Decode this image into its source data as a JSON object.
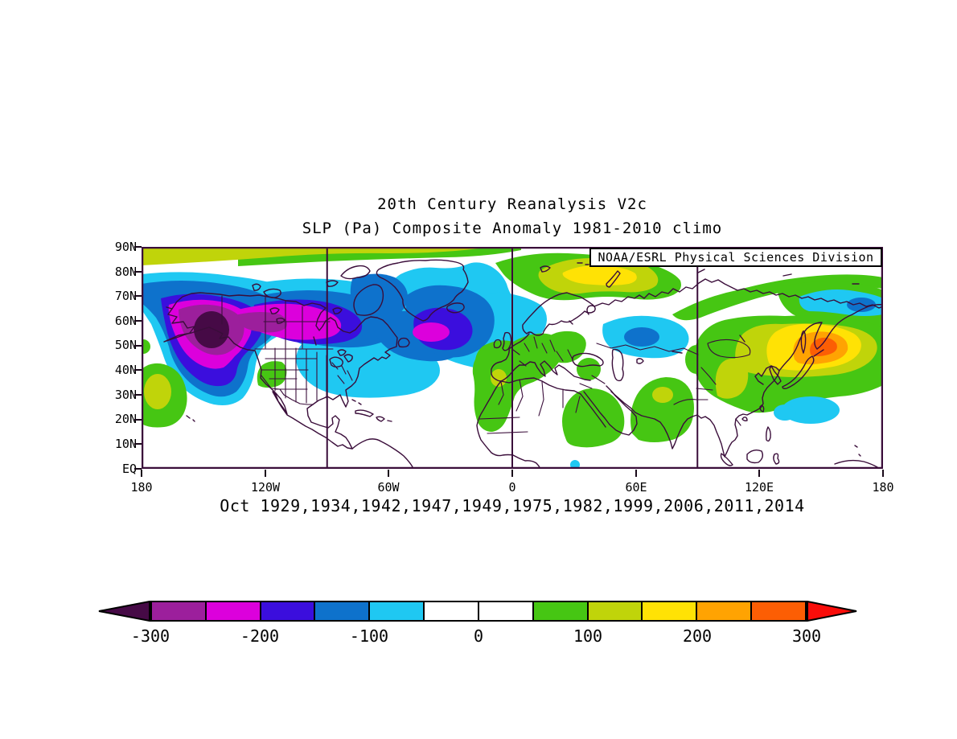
{
  "header": {
    "title_line1": "20th Century Reanalysis V2c",
    "title_line2": "SLP (Pa) Composite Anomaly 1981-2010 climo"
  },
  "map": {
    "credit": "NOAA/ESRL Physical Sciences Division",
    "lat_labels": [
      "90N",
      "80N",
      "70N",
      "60N",
      "50N",
      "40N",
      "30N",
      "20N",
      "10N",
      "EQ"
    ],
    "lon_labels": [
      "180",
      "120W",
      "60W",
      "0",
      "60E",
      "120E",
      "180"
    ]
  },
  "caption": "Oct 1929,1934,1942,1947,1949,1975,1982,1999,2006,2011,2014",
  "colorbar": {
    "tick_labels": [
      "-300",
      "-200",
      "-100",
      "0",
      "100",
      "200",
      "300"
    ],
    "segment_colors": [
      "#9C1F9C",
      "#DC00DC",
      "#3B0EDD",
      "#0E72CC",
      "#1FC8F2",
      "#FFFFFF",
      "#FFFFFF",
      "#46C613",
      "#C0D40A",
      "#FFE205",
      "#FFA302",
      "#FC5E04"
    ],
    "below_min_color": "#460A46",
    "above_max_color": "#F90D0A"
  },
  "chart_data": {
    "type": "heatmap",
    "title": "20th Century Reanalysis V2c",
    "subtitle": "SLP (Pa) Composite Anomaly 1981-2010 climo",
    "variable": "Sea level pressure composite anomaly",
    "units": "Pa",
    "climatology": "1981-2010",
    "composite_month": "Oct",
    "composite_years": [
      1929,
      1934,
      1942,
      1947,
      1949,
      1975,
      1982,
      1999,
      2006,
      2011,
      2014
    ],
    "credit": "NOAA/ESRL Physical Sciences Division",
    "projection": "cylindrical equidistant",
    "lon_range_deg": [
      -180,
      180
    ],
    "lat_range_deg": [
      0,
      90
    ],
    "xlabel_ticks": [
      "180",
      "120W",
      "60W",
      "0",
      "60E",
      "120E",
      "180"
    ],
    "ylabel_ticks": [
      "EQ",
      "10N",
      "20N",
      "30N",
      "40N",
      "50N",
      "60N",
      "70N",
      "80N",
      "90N"
    ],
    "grid_meridians_deg": [
      -90,
      0,
      90
    ],
    "colorbar_levels_pa": [
      -300,
      -250,
      -200,
      -150,
      -100,
      -50,
      0,
      50,
      100,
      150,
      200,
      250,
      300
    ],
    "colorbar_colors": [
      "#9C1F9C",
      "#DC00DC",
      "#3B0EDD",
      "#0E72CC",
      "#1FC8F2",
      "#FFFFFF",
      "#FFFFFF",
      "#46C613",
      "#C0D40A",
      "#FFE205",
      "#FFA302",
      "#FC5E04"
    ],
    "below_min_color": "#460A46",
    "above_max_color": "#F90D0A",
    "features": [
      {
        "region": "Gulf of Alaska / Yukon",
        "lon_deg": -146,
        "lat_deg": 56,
        "value_pa": -340,
        "note": "strong negative core (below -300)"
      },
      {
        "region": "Canada 55-65N band",
        "lon_deg": -110,
        "lat_deg": 60,
        "value_pa": -230
      },
      {
        "region": "South of Greenland / North Atlantic",
        "lon_deg": -39,
        "lat_deg": 55,
        "value_pa": -220
      },
      {
        "region": "Eastern United States / W Atlantic",
        "lon_deg": -75,
        "lat_deg": 40,
        "value_pa": -80
      },
      {
        "region": "NE Pacific (west of California)",
        "lon_deg": -172,
        "lat_deg": 32,
        "value_pa": 140
      },
      {
        "region": "SW United States (Great Basin)",
        "lon_deg": -113,
        "lat_deg": 38,
        "value_pa": 70
      },
      {
        "region": "Norwegian Sea / Scandinavia",
        "lon_deg": 5,
        "lat_deg": 63,
        "value_pa": -90
      },
      {
        "region": "Western Europe and Iberia",
        "lon_deg": 0,
        "lat_deg": 45,
        "value_pa": 80
      },
      {
        "region": "Gibraltar / Morocco spot",
        "lon_deg": -6,
        "lat_deg": 37,
        "value_pa": 120
      },
      {
        "region": "Kara Sea / Arctic Russia",
        "lon_deg": 45,
        "lat_deg": 80,
        "value_pa": 220,
        "note": "yellow core inside green band"
      },
      {
        "region": "Central Russia / Urals",
        "lon_deg": 63,
        "lat_deg": 54,
        "value_pa": -140
      },
      {
        "region": "Arabian Peninsula / Red Sea",
        "lon_deg": 42,
        "lat_deg": 20,
        "value_pa": 70
      },
      {
        "region": "Iran / Afghanistan",
        "lon_deg": 72,
        "lat_deg": 31,
        "value_pa": 120
      },
      {
        "region": "NE Asia / Sea of Okhotsk",
        "lon_deg": 150,
        "lat_deg": 51,
        "value_pa": 290,
        "note": "strong positive core (orange)"
      },
      {
        "region": "Inland China arm",
        "lon_deg": 105,
        "lat_deg": 35,
        "value_pa": 120
      },
      {
        "region": "East Siberian / Chukchi Sea",
        "lon_deg": 168,
        "lat_deg": 67,
        "value_pa": -140
      },
      {
        "region": "Subtropical NW Pacific",
        "lon_deg": 148,
        "lat_deg": 24,
        "value_pa": -80
      },
      {
        "region": "Polar cap rim 85-90N",
        "lon_deg": -120,
        "lat_deg": 87,
        "value_pa": 130
      }
    ]
  }
}
